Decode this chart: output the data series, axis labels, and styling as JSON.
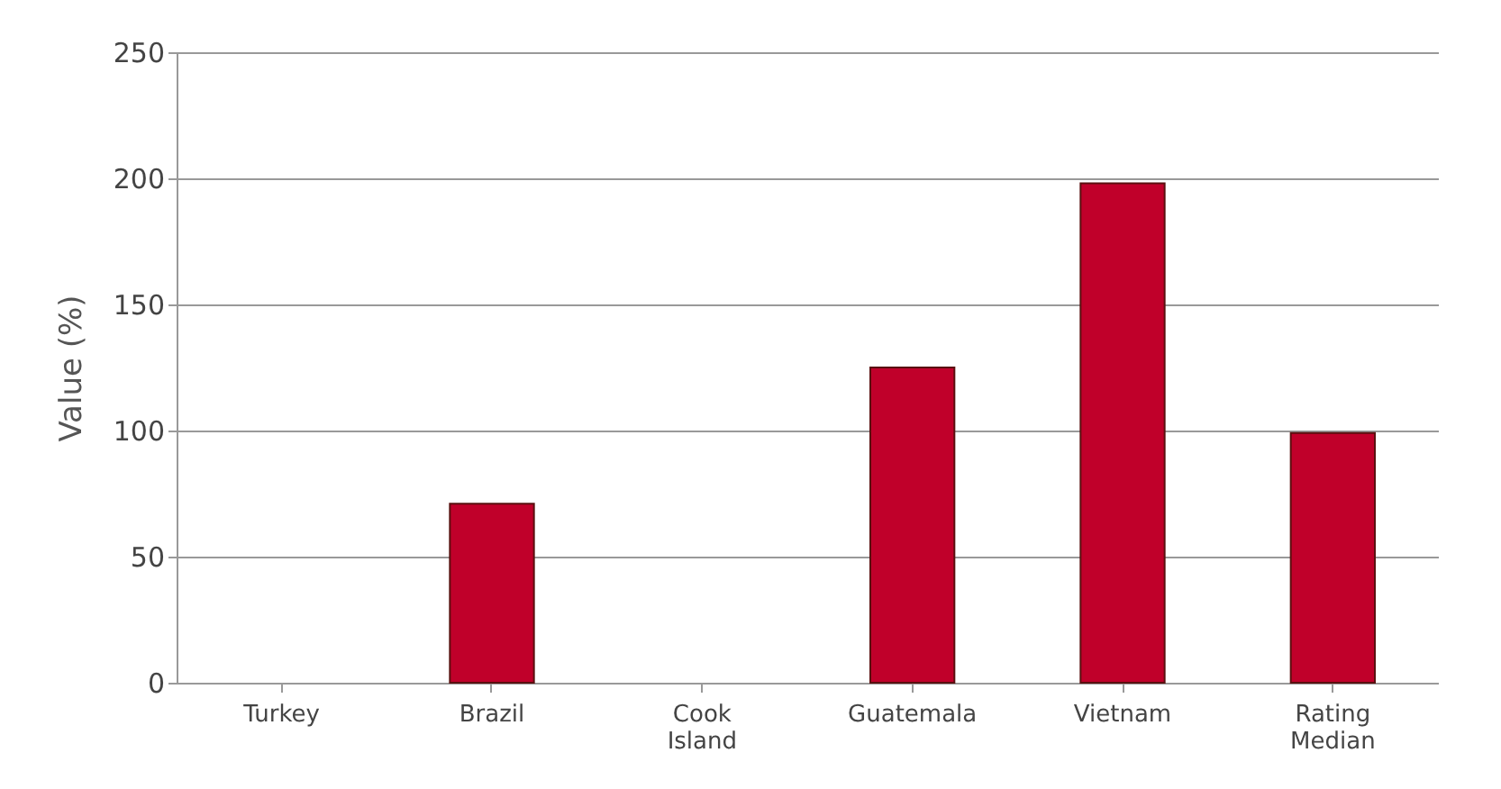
{
  "chart_data": {
    "type": "bar",
    "ylabel": "Value (%)",
    "categories": [
      "Turkey",
      "Brazil",
      "Cook Island",
      "Guatemala",
      "Vietnam",
      "Rating Median"
    ],
    "values": [
      null,
      71,
      null,
      125,
      198,
      99
    ],
    "color": "#c0002a",
    "ylim": [
      0,
      250
    ],
    "yticks": [
      0,
      50,
      100,
      150,
      200,
      250
    ],
    "grid": "y"
  }
}
